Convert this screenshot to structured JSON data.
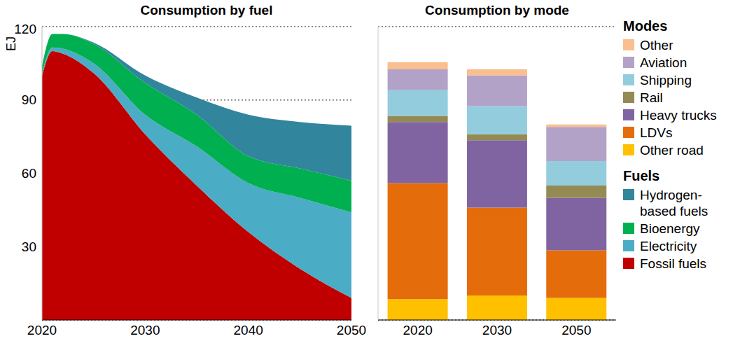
{
  "chart_data": [
    {
      "type": "area",
      "title": "Consumption by fuel",
      "y_label": "EJ",
      "stacked": true,
      "grid": true,
      "legend": "right",
      "legend_title": "Fuels",
      "x": [
        2020,
        2021,
        2022,
        2025,
        2030,
        2035,
        2040,
        2045,
        2050
      ],
      "xlim": [
        2020,
        2050
      ],
      "xticks": [
        2020,
        2030,
        2040,
        2050
      ],
      "ylim": [
        0,
        120
      ],
      "yticks": [
        30,
        60,
        90,
        120
      ],
      "series": [
        {
          "name": "Fossil fuels",
          "color": "#c00000",
          "values": [
            100,
            110,
            109,
            101,
            76,
            55,
            36,
            21,
            9
          ]
        },
        {
          "name": "Electricity",
          "color": "#4bacc6",
          "values": [
            1,
            1.5,
            2,
            4,
            8,
            16,
            20,
            29,
            35
          ]
        },
        {
          "name": "Bioenergy",
          "color": "#00b050",
          "values": [
            3,
            5.5,
            6,
            8,
            13,
            13,
            11,
            12,
            13
          ]
        },
        {
          "name": "Hydrogen-based fuels",
          "color": "#31859c",
          "values": [
            0,
            0,
            0,
            0.5,
            3,
            7,
            17,
            19,
            22.5
          ]
        }
      ]
    },
    {
      "type": "bar",
      "title": "Consumption by mode",
      "stacked": true,
      "grid": true,
      "legend": "right",
      "legend_title": "Modes",
      "tick_labels": "x",
      "categories": [
        "2020",
        "2030",
        "2050"
      ],
      "ylim": [
        0,
        120
      ],
      "yticks": [
        30,
        60,
        90,
        120
      ],
      "series": [
        {
          "name": "Other road",
          "color": "#ffc000",
          "values": [
            8.5,
            10,
            9
          ]
        },
        {
          "name": "LDVs",
          "color": "#e46c0a",
          "values": [
            47.5,
            36,
            19.5
          ]
        },
        {
          "name": "Heavy trucks",
          "color": "#8064a2",
          "values": [
            25,
            27.5,
            21.5
          ]
        },
        {
          "name": "Rail",
          "color": "#948a54",
          "values": [
            2.5,
            2.5,
            5
          ]
        },
        {
          "name": "Shipping",
          "color": "#93cddd",
          "values": [
            10.5,
            11.5,
            10
          ]
        },
        {
          "name": "Aviation",
          "color": "#b3a2c7",
          "values": [
            8.5,
            12.5,
            14
          ]
        },
        {
          "name": "Other",
          "color": "#f9bf8f",
          "values": [
            3,
            2.5,
            1
          ]
        }
      ]
    }
  ]
}
